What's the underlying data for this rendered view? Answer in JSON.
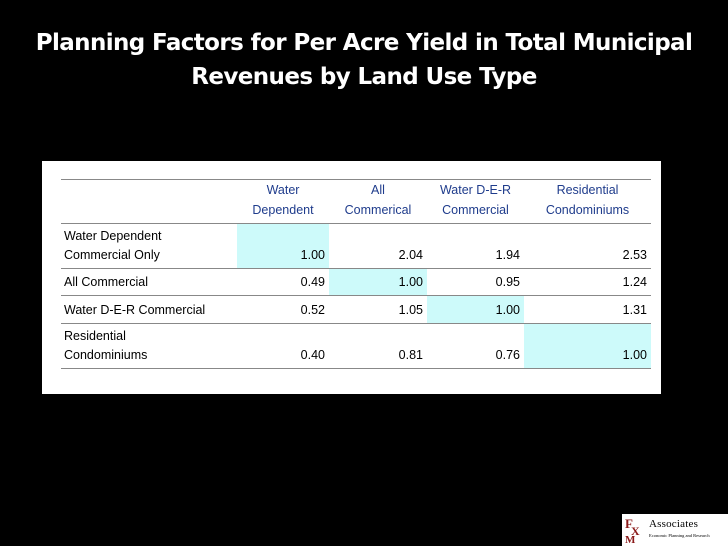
{
  "title": {
    "line1": "Planning Factors for Per Acre Yield in Total Municipal",
    "line2": "Revenues by Land Use Type"
  },
  "table": {
    "columns": [
      {
        "line1": "Water",
        "line2": "Dependent"
      },
      {
        "line1": "All",
        "line2": "Commerical"
      },
      {
        "line1": "Water D-E-R",
        "line2": "Commercial"
      },
      {
        "line1": "Residential",
        "line2": "Condominiums"
      }
    ],
    "rows": [
      {
        "label_line1": "Water Dependent",
        "label_line2": "Commercial Only",
        "values": [
          "1.00",
          "2.04",
          "1.94",
          "2.53"
        ]
      },
      {
        "label_line1": "All Commercial",
        "label_line2": "",
        "values": [
          "0.49",
          "1.00",
          "0.95",
          "1.24"
        ]
      },
      {
        "label_line1": "Water D-E-R Commercial",
        "label_line2": "",
        "values": [
          "0.52",
          "1.05",
          "1.00",
          "1.31"
        ]
      },
      {
        "label_line1": "Residential",
        "label_line2": "Condominiums",
        "values": [
          "0.40",
          "0.81",
          "0.76",
          "1.00"
        ]
      }
    ],
    "header_color": "#1f3c8c",
    "diagonal_highlight_color": "#cdfafa"
  },
  "logo": {
    "mark": "FXM",
    "word": "Associates",
    "subtitle": "Economic Planning and Research"
  }
}
